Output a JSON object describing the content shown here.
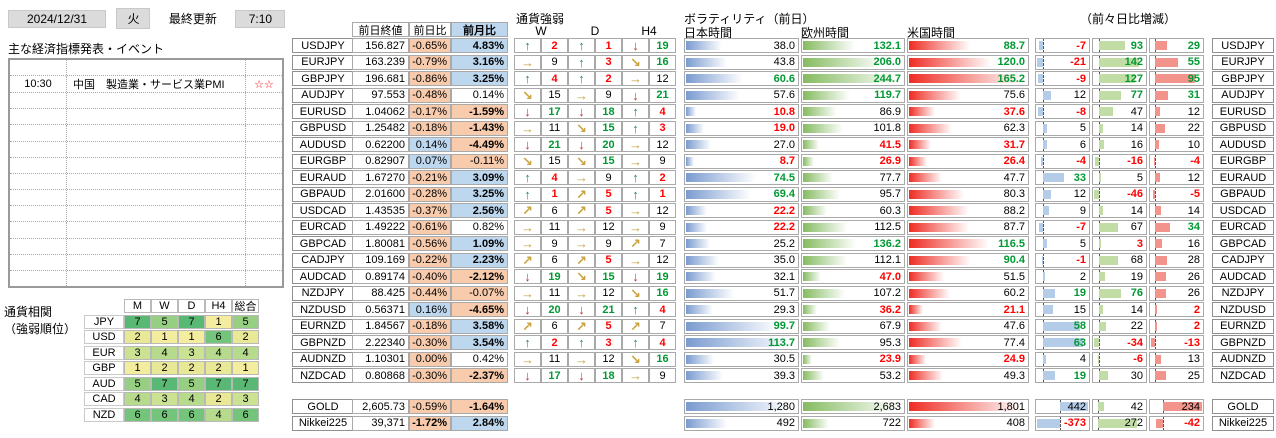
{
  "header": {
    "date": "2024/12/31",
    "weekday": "火",
    "last_update_label": "最終更新",
    "last_update_time": "7:10"
  },
  "events": {
    "title": "主な経済指標発表・イベント",
    "row_count": 14,
    "items": [
      {
        "row": 1,
        "time": "10:30",
        "event": "中国　製造業・サービス業PMI",
        "stars": "☆☆"
      }
    ]
  },
  "correlation": {
    "title_line1": "通貨相関",
    "title_line2": "（強弱順位）",
    "columns": [
      "M",
      "W",
      "D",
      "H4",
      "総合"
    ],
    "currencies": [
      "JPY",
      "USD",
      "EUR",
      "GBP",
      "AUD",
      "CAD",
      "NZD"
    ],
    "ranks": [
      [
        7,
        5,
        7,
        1,
        5
      ],
      [
        2,
        1,
        1,
        6,
        2
      ],
      [
        3,
        4,
        3,
        4,
        4
      ],
      [
        1,
        2,
        2,
        2,
        1
      ],
      [
        5,
        7,
        5,
        7,
        7
      ],
      [
        4,
        3,
        4,
        2,
        3
      ],
      [
        6,
        6,
        6,
        4,
        6
      ]
    ],
    "rank_colors": {
      "1": "#F4EC9E",
      "2": "#E9E896",
      "3": "#CBE293",
      "4": "#B7DB8C",
      "5": "#97CF82",
      "6": "#74C47B",
      "7": "#59B873"
    }
  },
  "price_table": {
    "headers": [
      "前日終値",
      "前日比",
      "前月比"
    ]
  },
  "strength": {
    "title": "通貨強弱",
    "columns": [
      "W",
      "D",
      "H4"
    ],
    "arrow_glyphs": {
      "up": "↑",
      "ne": "↗",
      "rt": "→",
      "se": "↘",
      "dn": "↓"
    },
    "arrow_colors": {
      "up": "#2F8F5B",
      "ne": "#C9A23C",
      "rt": "#C9A23C",
      "se": "#C9A23C",
      "dn": "#C03A2B"
    }
  },
  "volatility": {
    "title": "ボラティリティ（前日）",
    "change_title": "（前々日比増減）",
    "session_headers": [
      "日本時間",
      "欧州時間",
      "米国時間"
    ],
    "bar_colors": [
      "#7A9BD0",
      "#85BB60",
      "#EE2C23"
    ],
    "chg_bar_colors": [
      "#B4CCE8",
      "#C2DCA6",
      "#F2948C"
    ]
  },
  "colors": {
    "pos_bg": "#BDD7EE",
    "neg_bg": "#F8CBAD",
    "green": "#009933",
    "red": "#FF0000"
  },
  "rows": [
    {
      "pair": "USDJPY",
      "close": "156.827",
      "d1": [
        "-0.65%",
        "n",
        0
      ],
      "m1": [
        "4.83%",
        "p",
        1
      ],
      "st": [
        [
          "up",
          2,
          "r"
        ],
        [
          "up",
          1,
          "r"
        ],
        [
          "dn",
          19,
          "g"
        ]
      ],
      "vol": [
        [
          "38.0",
          ""
        ],
        [
          "132.1",
          "g"
        ],
        [
          "88.7",
          "g"
        ]
      ],
      "chg": [
        [
          -7,
          "r"
        ],
        [
          93,
          "g"
        ],
        [
          29,
          "g"
        ]
      ]
    },
    {
      "pair": "EURJPY",
      "close": "163.239",
      "d1": [
        "-0.79%",
        "n",
        0
      ],
      "m1": [
        "3.16%",
        "p",
        1
      ],
      "st": [
        [
          "rt",
          9,
          ""
        ],
        [
          "up",
          3,
          "r"
        ],
        [
          "se",
          16,
          "g"
        ]
      ],
      "vol": [
        [
          "43.8",
          ""
        ],
        [
          "206.0",
          "g"
        ],
        [
          "120.0",
          "g"
        ]
      ],
      "chg": [
        [
          -21,
          "r"
        ],
        [
          142,
          "g"
        ],
        [
          55,
          "g"
        ]
      ]
    },
    {
      "pair": "GBPJPY",
      "close": "196.681",
      "d1": [
        "-0.86%",
        "n",
        0
      ],
      "m1": [
        "3.25%",
        "p",
        1
      ],
      "st": [
        [
          "up",
          4,
          "r"
        ],
        [
          "up",
          2,
          "r"
        ],
        [
          "rt",
          12,
          ""
        ]
      ],
      "vol": [
        [
          "60.6",
          "g"
        ],
        [
          "244.7",
          "g"
        ],
        [
          "165.2",
          "g"
        ]
      ],
      "chg": [
        [
          -9,
          "r"
        ],
        [
          127,
          "g"
        ],
        [
          95,
          "g"
        ]
      ]
    },
    {
      "pair": "AUDJPY",
      "close": "97.553",
      "d1": [
        "-0.48%",
        "n",
        0
      ],
      "m1": [
        "0.14%",
        "",
        0
      ],
      "st": [
        [
          "se",
          15,
          ""
        ],
        [
          "rt",
          9,
          ""
        ],
        [
          "dn",
          21,
          "g"
        ]
      ],
      "vol": [
        [
          "57.6",
          ""
        ],
        [
          "119.7",
          "g"
        ],
        [
          "75.6",
          ""
        ]
      ],
      "chg": [
        [
          12,
          ""
        ],
        [
          77,
          "g"
        ],
        [
          31,
          "g"
        ]
      ]
    },
    {
      "pair": "EURUSD",
      "close": "1.04062",
      "d1": [
        "-0.17%",
        "n",
        0
      ],
      "m1": [
        "-1.59%",
        "n",
        1
      ],
      "st": [
        [
          "dn",
          17,
          "g"
        ],
        [
          "dn",
          18,
          "g"
        ],
        [
          "up",
          4,
          "r"
        ]
      ],
      "vol": [
        [
          "10.8",
          "r"
        ],
        [
          "86.9",
          ""
        ],
        [
          "37.6",
          "r"
        ]
      ],
      "chg": [
        [
          -8,
          "r"
        ],
        [
          47,
          ""
        ],
        [
          12,
          ""
        ]
      ]
    },
    {
      "pair": "GBPUSD",
      "close": "1.25482",
      "d1": [
        "-0.18%",
        "n",
        0
      ],
      "m1": [
        "-1.43%",
        "n",
        1
      ],
      "st": [
        [
          "rt",
          11,
          ""
        ],
        [
          "se",
          15,
          "g"
        ],
        [
          "up",
          3,
          "r"
        ]
      ],
      "vol": [
        [
          "19.0",
          "r"
        ],
        [
          "101.8",
          ""
        ],
        [
          "62.3",
          ""
        ]
      ],
      "chg": [
        [
          5,
          ""
        ],
        [
          14,
          ""
        ],
        [
          22,
          ""
        ]
      ]
    },
    {
      "pair": "AUDUSD",
      "close": "0.62200",
      "d1": [
        "0.14%",
        "p",
        0
      ],
      "m1": [
        "-4.49%",
        "n",
        1
      ],
      "st": [
        [
          "dn",
          21,
          "g"
        ],
        [
          "dn",
          20,
          "g"
        ],
        [
          "rt",
          12,
          ""
        ]
      ],
      "vol": [
        [
          "27.0",
          ""
        ],
        [
          "41.5",
          "r"
        ],
        [
          "31.7",
          "r"
        ]
      ],
      "chg": [
        [
          6,
          ""
        ],
        [
          16,
          ""
        ],
        [
          10,
          ""
        ]
      ]
    },
    {
      "pair": "EURGBP",
      "close": "0.82907",
      "d1": [
        "0.07%",
        "p",
        0
      ],
      "m1": [
        "-0.11%",
        "n",
        0
      ],
      "st": [
        [
          "se",
          15,
          ""
        ],
        [
          "se",
          15,
          "g"
        ],
        [
          "rt",
          9,
          ""
        ]
      ],
      "vol": [
        [
          "8.7",
          "r"
        ],
        [
          "26.9",
          "r"
        ],
        [
          "26.4",
          "r"
        ]
      ],
      "chg": [
        [
          -4,
          "r"
        ],
        [
          -16,
          "r"
        ],
        [
          -4,
          "r"
        ]
      ]
    },
    {
      "pair": "EURAUD",
      "close": "1.67270",
      "d1": [
        "-0.21%",
        "n",
        0
      ],
      "m1": [
        "3.09%",
        "p",
        1
      ],
      "st": [
        [
          "up",
          4,
          "r"
        ],
        [
          "rt",
          9,
          ""
        ],
        [
          "up",
          2,
          "r"
        ]
      ],
      "vol": [
        [
          "74.5",
          "g"
        ],
        [
          "77.7",
          ""
        ],
        [
          "47.7",
          ""
        ]
      ],
      "chg": [
        [
          33,
          "g"
        ],
        [
          5,
          ""
        ],
        [
          12,
          ""
        ]
      ]
    },
    {
      "pair": "GBPAUD",
      "close": "2.01600",
      "d1": [
        "-0.28%",
        "n",
        0
      ],
      "m1": [
        "3.25%",
        "p",
        1
      ],
      "st": [
        [
          "up",
          1,
          "r"
        ],
        [
          "ne",
          5,
          "r"
        ],
        [
          "up",
          1,
          "r"
        ]
      ],
      "vol": [
        [
          "69.4",
          "g"
        ],
        [
          "95.7",
          ""
        ],
        [
          "80.3",
          ""
        ]
      ],
      "chg": [
        [
          12,
          ""
        ],
        [
          -46,
          "r"
        ],
        [
          -5,
          "r"
        ]
      ]
    },
    {
      "pair": "USDCAD",
      "close": "1.43535",
      "d1": [
        "-0.37%",
        "n",
        0
      ],
      "m1": [
        "2.56%",
        "p",
        1
      ],
      "st": [
        [
          "ne",
          6,
          ""
        ],
        [
          "ne",
          5,
          "r"
        ],
        [
          "rt",
          12,
          ""
        ]
      ],
      "vol": [
        [
          "22.2",
          "r"
        ],
        [
          "60.3",
          ""
        ],
        [
          "88.2",
          ""
        ]
      ],
      "chg": [
        [
          9,
          ""
        ],
        [
          14,
          ""
        ],
        [
          14,
          ""
        ]
      ]
    },
    {
      "pair": "EURCAD",
      "close": "1.49222",
      "d1": [
        "-0.61%",
        "n",
        0
      ],
      "m1": [
        "0.82%",
        "",
        0
      ],
      "st": [
        [
          "rt",
          11,
          ""
        ],
        [
          "rt",
          12,
          ""
        ],
        [
          "rt",
          9,
          ""
        ]
      ],
      "vol": [
        [
          "22.2",
          "r"
        ],
        [
          "112.5",
          ""
        ],
        [
          "87.7",
          ""
        ]
      ],
      "chg": [
        [
          -7,
          "r"
        ],
        [
          67,
          ""
        ],
        [
          34,
          "g"
        ]
      ]
    },
    {
      "pair": "GBPCAD",
      "close": "1.80081",
      "d1": [
        "-0.56%",
        "n",
        0
      ],
      "m1": [
        "1.09%",
        "p",
        1
      ],
      "st": [
        [
          "rt",
          9,
          ""
        ],
        [
          "rt",
          9,
          ""
        ],
        [
          "ne",
          7,
          ""
        ]
      ],
      "vol": [
        [
          "25.2",
          ""
        ],
        [
          "136.2",
          "g"
        ],
        [
          "116.5",
          "g"
        ]
      ],
      "chg": [
        [
          5,
          ""
        ],
        [
          3,
          "r"
        ],
        [
          16,
          ""
        ]
      ]
    },
    {
      "pair": "CADJPY",
      "close": "109.169",
      "d1": [
        "-0.22%",
        "n",
        0
      ],
      "m1": [
        "2.23%",
        "p",
        1
      ],
      "st": [
        [
          "ne",
          6,
          ""
        ],
        [
          "ne",
          5,
          "r"
        ],
        [
          "rt",
          12,
          ""
        ]
      ],
      "vol": [
        [
          "35.0",
          ""
        ],
        [
          "112.1",
          ""
        ],
        [
          "90.4",
          "g"
        ]
      ],
      "chg": [
        [
          -1,
          "r"
        ],
        [
          68,
          ""
        ],
        [
          28,
          ""
        ]
      ]
    },
    {
      "pair": "AUDCAD",
      "close": "0.89174",
      "d1": [
        "-0.40%",
        "n",
        0
      ],
      "m1": [
        "-2.12%",
        "n",
        1
      ],
      "st": [
        [
          "dn",
          19,
          "g"
        ],
        [
          "se",
          15,
          "g"
        ],
        [
          "dn",
          19,
          "g"
        ]
      ],
      "vol": [
        [
          "32.1",
          ""
        ],
        [
          "47.0",
          "r"
        ],
        [
          "51.5",
          ""
        ]
      ],
      "chg": [
        [
          2,
          ""
        ],
        [
          19,
          ""
        ],
        [
          26,
          ""
        ]
      ]
    },
    {
      "pair": "NZDJPY",
      "close": "88.425",
      "d1": [
        "-0.44%",
        "n",
        0
      ],
      "m1": [
        "-0.07%",
        "n",
        0
      ],
      "st": [
        [
          "rt",
          11,
          ""
        ],
        [
          "rt",
          12,
          ""
        ],
        [
          "se",
          16,
          "g"
        ]
      ],
      "vol": [
        [
          "51.7",
          ""
        ],
        [
          "107.2",
          ""
        ],
        [
          "60.2",
          ""
        ]
      ],
      "chg": [
        [
          19,
          "g"
        ],
        [
          76,
          "g"
        ],
        [
          26,
          ""
        ]
      ]
    },
    {
      "pair": "NZDUSD",
      "close": "0.56371",
      "d1": [
        "0.16%",
        "p",
        0
      ],
      "m1": [
        "-4.65%",
        "n",
        1
      ],
      "st": [
        [
          "dn",
          20,
          "g"
        ],
        [
          "dn",
          21,
          "g"
        ],
        [
          "up",
          4,
          "r"
        ]
      ],
      "vol": [
        [
          "29.3",
          ""
        ],
        [
          "36.2",
          "r"
        ],
        [
          "21.1",
          "r"
        ]
      ],
      "chg": [
        [
          15,
          ""
        ],
        [
          14,
          ""
        ],
        [
          2,
          "r"
        ]
      ]
    },
    {
      "pair": "EURNZD",
      "close": "1.84567",
      "d1": [
        "-0.18%",
        "n",
        0
      ],
      "m1": [
        "3.58%",
        "p",
        1
      ],
      "st": [
        [
          "ne",
          6,
          ""
        ],
        [
          "ne",
          5,
          "r"
        ],
        [
          "ne",
          7,
          ""
        ]
      ],
      "vol": [
        [
          "99.7",
          "g"
        ],
        [
          "67.9",
          ""
        ],
        [
          "47.6",
          ""
        ]
      ],
      "chg": [
        [
          58,
          "g"
        ],
        [
          22,
          ""
        ],
        [
          2,
          "r"
        ]
      ]
    },
    {
      "pair": "GBPNZD",
      "close": "2.22340",
      "d1": [
        "-0.30%",
        "n",
        0
      ],
      "m1": [
        "3.54%",
        "p",
        1
      ],
      "st": [
        [
          "up",
          2,
          "r"
        ],
        [
          "up",
          3,
          "r"
        ],
        [
          "up",
          4,
          "r"
        ]
      ],
      "vol": [
        [
          "113.7",
          "g"
        ],
        [
          "95.3",
          ""
        ],
        [
          "77.4",
          ""
        ]
      ],
      "chg": [
        [
          63,
          "g"
        ],
        [
          -34,
          "r"
        ],
        [
          -13,
          "r"
        ]
      ]
    },
    {
      "pair": "AUDNZD",
      "close": "1.10301",
      "d1": [
        "0.00%",
        "n",
        0
      ],
      "m1": [
        "0.42%",
        "",
        0
      ],
      "st": [
        [
          "rt",
          11,
          ""
        ],
        [
          "rt",
          12,
          ""
        ],
        [
          "se",
          16,
          "g"
        ]
      ],
      "vol": [
        [
          "30.5",
          ""
        ],
        [
          "23.9",
          "r"
        ],
        [
          "24.9",
          "r"
        ]
      ],
      "chg": [
        [
          4,
          ""
        ],
        [
          -6,
          "r"
        ],
        [
          13,
          ""
        ]
      ]
    },
    {
      "pair": "NZDCAD",
      "close": "0.80868",
      "d1": [
        "-0.30%",
        "n",
        0
      ],
      "m1": [
        "-2.37%",
        "n",
        1
      ],
      "st": [
        [
          "dn",
          17,
          "g"
        ],
        [
          "dn",
          18,
          "g"
        ],
        [
          "rt",
          9,
          ""
        ]
      ],
      "vol": [
        [
          "39.3",
          ""
        ],
        [
          "53.2",
          ""
        ],
        [
          "49.3",
          ""
        ]
      ],
      "chg": [
        [
          19,
          "g"
        ],
        [
          30,
          ""
        ],
        [
          25,
          ""
        ]
      ]
    }
  ],
  "extra_rows": [
    {
      "pair": "GOLD",
      "close": "2,605.73",
      "d1": [
        "-0.59%",
        "n",
        0
      ],
      "m1": [
        "-1.64%",
        "n",
        1
      ],
      "vol": [
        [
          "1,280",
          ""
        ],
        [
          "2,683",
          ""
        ],
        [
          "1,801",
          ""
        ]
      ],
      "chg": [
        [
          442,
          ""
        ],
        [
          42,
          ""
        ],
        [
          234,
          ""
        ]
      ]
    },
    {
      "pair": "Nikkei225",
      "close": "39,371",
      "d1": [
        "-1.72%",
        "n",
        1
      ],
      "m1": [
        "2.84%",
        "p",
        1
      ],
      "vol": [
        [
          "492",
          ""
        ],
        [
          "722",
          ""
        ],
        [
          "408",
          ""
        ]
      ],
      "chg": [
        [
          -373,
          "r"
        ],
        [
          272,
          ""
        ],
        [
          -42,
          "r"
        ]
      ]
    }
  ]
}
